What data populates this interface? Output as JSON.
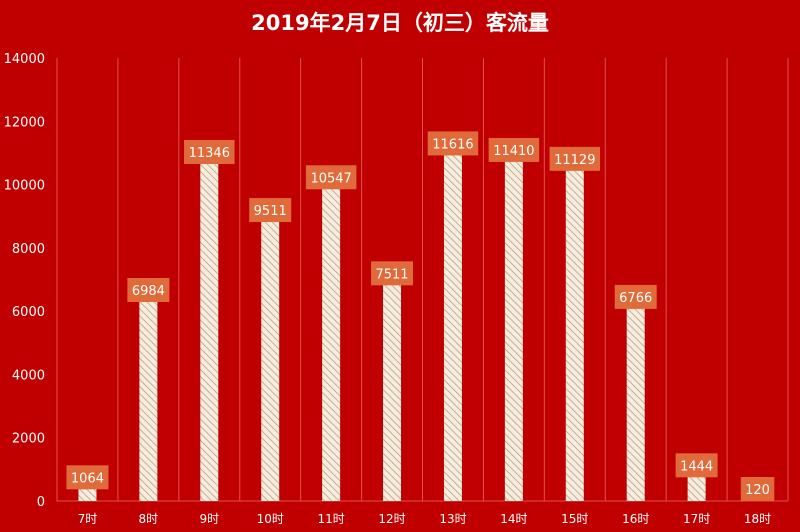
{
  "chart_data": {
    "type": "bar",
    "title": "2019年2月7日（初三）客流量",
    "xlabel": "",
    "ylabel": "",
    "categories": [
      "7时",
      "8时",
      "9时",
      "10时",
      "11时",
      "12时",
      "13时",
      "14时",
      "15时",
      "16时",
      "17时",
      "18时"
    ],
    "values": [
      1064,
      6984,
      11346,
      9511,
      10547,
      7511,
      11616,
      11410,
      11129,
      6766,
      1444,
      120
    ],
    "ylim": [
      0,
      14000
    ],
    "yticks": [
      "0",
      "2000",
      "4000",
      "6000",
      "8000",
      "10000",
      "12000",
      "14000"
    ],
    "grid": "vertical",
    "legend": "none",
    "data_labels": true,
    "colors": {
      "background": "#c00000",
      "bar_fill": "#f4eee0",
      "bar_hatch": "#c49a7a",
      "label_box": "#e06a3a",
      "text": "#ffffff"
    }
  }
}
